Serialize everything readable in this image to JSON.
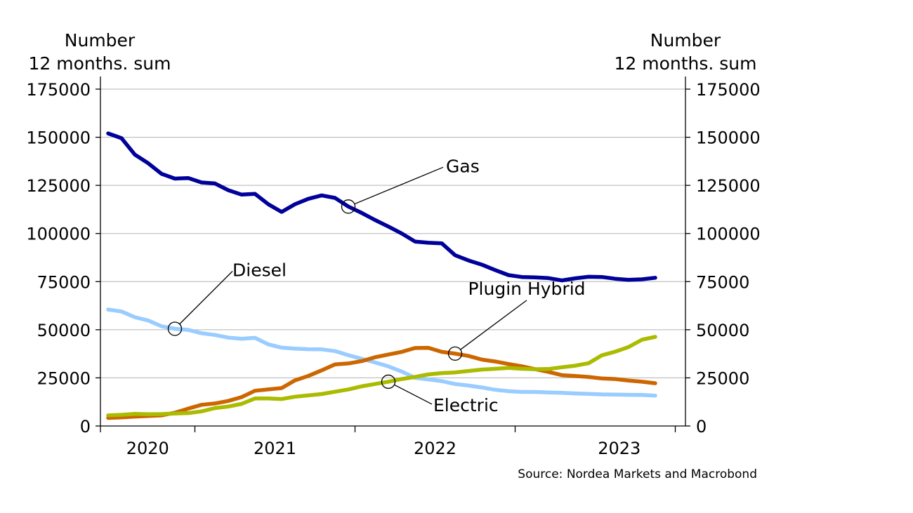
{
  "chart_data": {
    "type": "line",
    "y_label_left": [
      "Number",
      "12 months. sum"
    ],
    "y_label_right": [
      "Number",
      "12 months. sum"
    ],
    "ylim": [
      0,
      175000
    ],
    "yticks": [
      "0",
      "25000",
      "50000",
      "75000",
      "100000",
      "125000",
      "150000",
      "175000"
    ],
    "ytick_values": [
      0,
      25000,
      50000,
      75000,
      100000,
      125000,
      150000,
      175000
    ],
    "xtick_labels": [
      "2020",
      "2021",
      "2022",
      "2023"
    ],
    "x_start": "2019-06",
    "gridlines": true,
    "source": "Source: Nordea Markets and Macrobond",
    "series": [
      {
        "name": "Gas",
        "color": "#00009a",
        "annotation_month": "2020-12",
        "values": [
          152000,
          149500,
          141000,
          136500,
          131000,
          128500,
          128800,
          126500,
          126000,
          122500,
          120200,
          120600,
          115200,
          111200,
          115200,
          118000,
          119800,
          118500,
          114000,
          110700,
          107000,
          103600,
          100000,
          95800,
          95200,
          94900,
          88700,
          86000,
          83800,
          81000,
          78400,
          77400,
          77200,
          76800,
          75600,
          76700,
          77500,
          77400,
          76500,
          75900,
          76200,
          77000
        ]
      },
      {
        "name": "Diesel",
        "color": "#99ccff",
        "annotation_month": "2019-11",
        "values": [
          60500,
          59500,
          56500,
          54800,
          51800,
          50500,
          49900,
          48200,
          47300,
          45900,
          45300,
          45800,
          42400,
          40700,
          40200,
          39900,
          39800,
          38900,
          36800,
          34900,
          33000,
          31000,
          28300,
          25000,
          24200,
          23300,
          21800,
          21000,
          20000,
          18800,
          18100,
          17700,
          17700,
          17400,
          17200,
          16900,
          16700,
          16400,
          16300,
          16200,
          16100,
          15800
        ]
      },
      {
        "name": "Plugin Hybrid",
        "color": "#cc6600",
        "annotation_month": "2021-08",
        "values": [
          4200,
          4500,
          4900,
          5200,
          5500,
          6900,
          9000,
          11000,
          11700,
          13000,
          15000,
          18300,
          19000,
          19700,
          23700,
          26000,
          28900,
          32000,
          32500,
          33700,
          35700,
          37100,
          38500,
          40500,
          40600,
          38500,
          37600,
          36400,
          34500,
          33500,
          32200,
          31000,
          29500,
          28100,
          26400,
          26000,
          25500,
          24700,
          24400,
          23600,
          23000,
          22200
        ]
      },
      {
        "name": "Electric",
        "color": "#aabb00",
        "annotation_month": "2021-03",
        "values": [
          5500,
          5800,
          6300,
          6100,
          6200,
          6500,
          6700,
          7600,
          9300,
          10100,
          11500,
          14300,
          14300,
          14000,
          15200,
          15900,
          16600,
          17800,
          19000,
          20600,
          21800,
          23000,
          24400,
          25500,
          26800,
          27500,
          27800,
          28600,
          29300,
          29700,
          30200,
          29700,
          29500,
          29600,
          30500,
          31300,
          32600,
          36700,
          38600,
          41000,
          44800,
          46300
        ]
      }
    ]
  }
}
